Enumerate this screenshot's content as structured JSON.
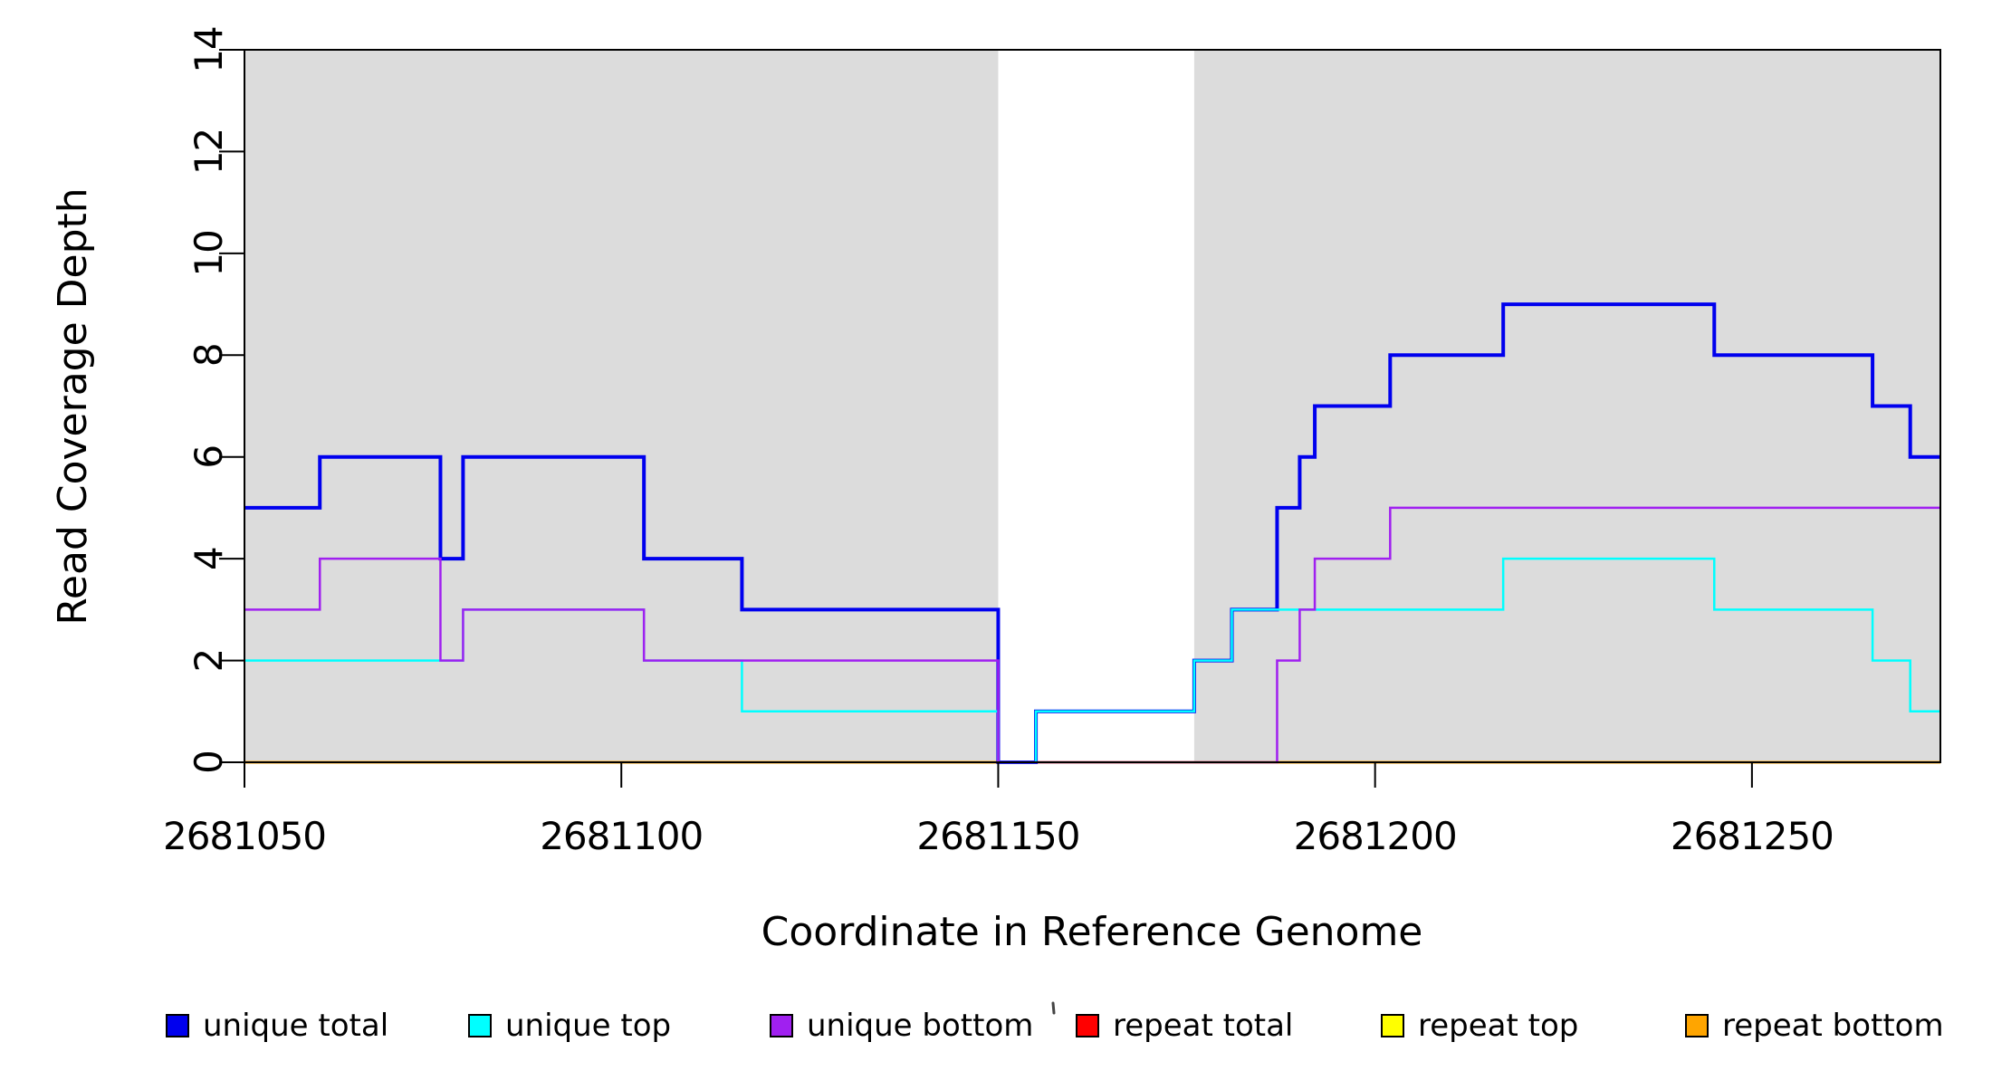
{
  "figure": {
    "background": "#ffffff",
    "plot_background_shaded": "#DCDCDC"
  },
  "chart_data": {
    "type": "line",
    "subtype": "step-post",
    "title": "",
    "xlabel": "Coordinate in Reference Genome",
    "ylabel": "Read Coverage Depth",
    "xlim": [
      2681050,
      2681275
    ],
    "ylim": [
      0,
      14
    ],
    "grid": false,
    "x_ticks": [
      2681050,
      2681100,
      2681150,
      2681200,
      2681250
    ],
    "x_tick_labels": [
      "2681050",
      "2681100",
      "2681150",
      "2681200",
      "2681250"
    ],
    "y_ticks": [
      0,
      2,
      4,
      6,
      8,
      10,
      12,
      14
    ],
    "y_tick_labels": [
      "0",
      "2",
      "4",
      "6",
      "8",
      "10",
      "12",
      "14"
    ],
    "shaded_regions": [
      {
        "x0": 2681050,
        "x1": 2681150,
        "color": "#DCDCDC"
      },
      {
        "x0": 2681176,
        "x1": 2681275,
        "color": "#DCDCDC"
      }
    ],
    "series": [
      {
        "name": "repeat total",
        "color": "#FF0000",
        "line_width": 2,
        "points": [
          [
            2681050,
            0
          ]
        ],
        "x_end": 2681275
      },
      {
        "name": "repeat top",
        "color": "#FFFF00",
        "line_width": 2,
        "points": [
          [
            2681050,
            0
          ]
        ],
        "x_end": 2681275
      },
      {
        "name": "repeat bottom",
        "color": "#FFA500",
        "line_width": 3,
        "points": [
          [
            2681050,
            0
          ]
        ],
        "x_end": 2681275
      },
      {
        "name": "unique total",
        "color": "#0000EE",
        "line_width": 4,
        "points": [
          [
            2681050,
            5
          ],
          [
            2681060,
            6
          ],
          [
            2681076,
            4
          ],
          [
            2681079,
            6
          ],
          [
            2681103,
            4
          ],
          [
            2681116,
            3
          ],
          [
            2681150,
            0
          ],
          [
            2681155,
            1
          ],
          [
            2681176,
            2
          ],
          [
            2681181,
            3
          ],
          [
            2681187,
            5
          ],
          [
            2681190,
            6
          ],
          [
            2681192,
            7
          ],
          [
            2681202,
            8
          ],
          [
            2681217,
            9
          ],
          [
            2681245,
            8
          ],
          [
            2681266,
            7
          ],
          [
            2681271,
            6
          ]
        ],
        "x_end": 2681275
      },
      {
        "name": "unique top",
        "color": "#00FFFF",
        "line_width": 2.5,
        "points": [
          [
            2681050,
            2
          ],
          [
            2681079,
            3
          ],
          [
            2681103,
            2
          ],
          [
            2681116,
            1
          ],
          [
            2681150,
            0
          ],
          [
            2681155,
            1
          ],
          [
            2681176,
            2
          ],
          [
            2681181,
            3
          ],
          [
            2681217,
            4
          ],
          [
            2681245,
            3
          ],
          [
            2681266,
            2
          ],
          [
            2681271,
            1
          ]
        ],
        "x_end": 2681275
      },
      {
        "name": "unique bottom",
        "color": "#A020F0",
        "line_width": 2.5,
        "points": [
          [
            2681050,
            3
          ],
          [
            2681060,
            4
          ],
          [
            2681076,
            2
          ],
          [
            2681079,
            3
          ],
          [
            2681103,
            2
          ],
          [
            2681150,
            0
          ],
          [
            2681187,
            2
          ],
          [
            2681190,
            3
          ],
          [
            2681192,
            4
          ],
          [
            2681202,
            5
          ]
        ],
        "x_end": 2681275
      }
    ],
    "legend": {
      "position": "bottom",
      "entries": [
        {
          "label": "unique total",
          "color": "#0000EE"
        },
        {
          "label": "unique top",
          "color": "#00FFFF"
        },
        {
          "label": "unique bottom",
          "color": "#A020F0"
        },
        {
          "label": "repeat total",
          "color": "#FF0000"
        },
        {
          "label": "repeat top",
          "color": "#FFFF00"
        },
        {
          "label": "repeat bottom",
          "color": "#FFA500"
        }
      ]
    }
  }
}
